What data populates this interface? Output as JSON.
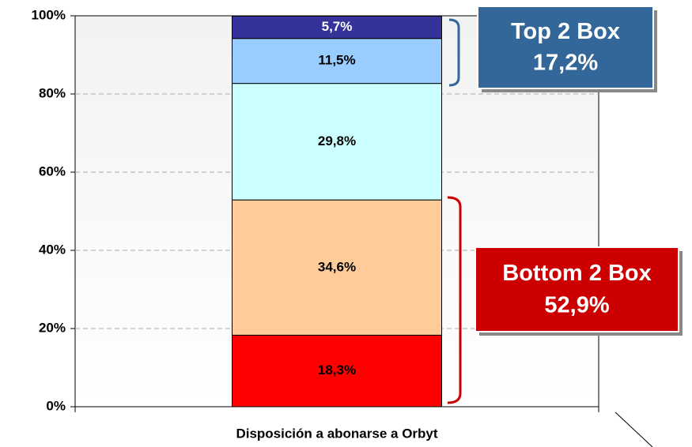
{
  "chart_data": {
    "type": "stacked_bar",
    "xlabel": "Disposición a abonarse a Orbyt",
    "categories": [
      null
    ],
    "series": [
      {
        "color": "#ff0000",
        "values": [
          18.3
        ],
        "value_labels": [
          "18,3%"
        ]
      },
      {
        "color": "#ffcc99",
        "values": [
          34.6
        ],
        "value_labels": [
          "34,6%"
        ]
      },
      {
        "color": "#ccffff",
        "values": [
          29.8
        ],
        "value_labels": [
          "29,8%"
        ]
      },
      {
        "color": "#99ccff",
        "values": [
          11.5
        ],
        "value_labels": [
          "11,5%"
        ]
      },
      {
        "color": "#333399",
        "values": [
          5.7
        ],
        "value_labels": [
          "5,7%"
        ]
      }
    ],
    "ylim": [
      0,
      100
    ],
    "yticks": [
      {
        "value": 0,
        "label": "0%"
      },
      {
        "value": 20,
        "label": "20%"
      },
      {
        "value": 40,
        "label": "40%"
      },
      {
        "value": 60,
        "label": "60%"
      },
      {
        "value": 80,
        "label": "80%"
      },
      {
        "value": 100,
        "label": "100%"
      }
    ],
    "grid": true,
    "annotations": [
      {
        "lines": [
          "Top 2 Box",
          "17,2%"
        ],
        "color": "#336699"
      },
      {
        "lines": [
          "Bottom 2 Box",
          "52,9%"
        ],
        "color": "#cc0000"
      }
    ]
  }
}
